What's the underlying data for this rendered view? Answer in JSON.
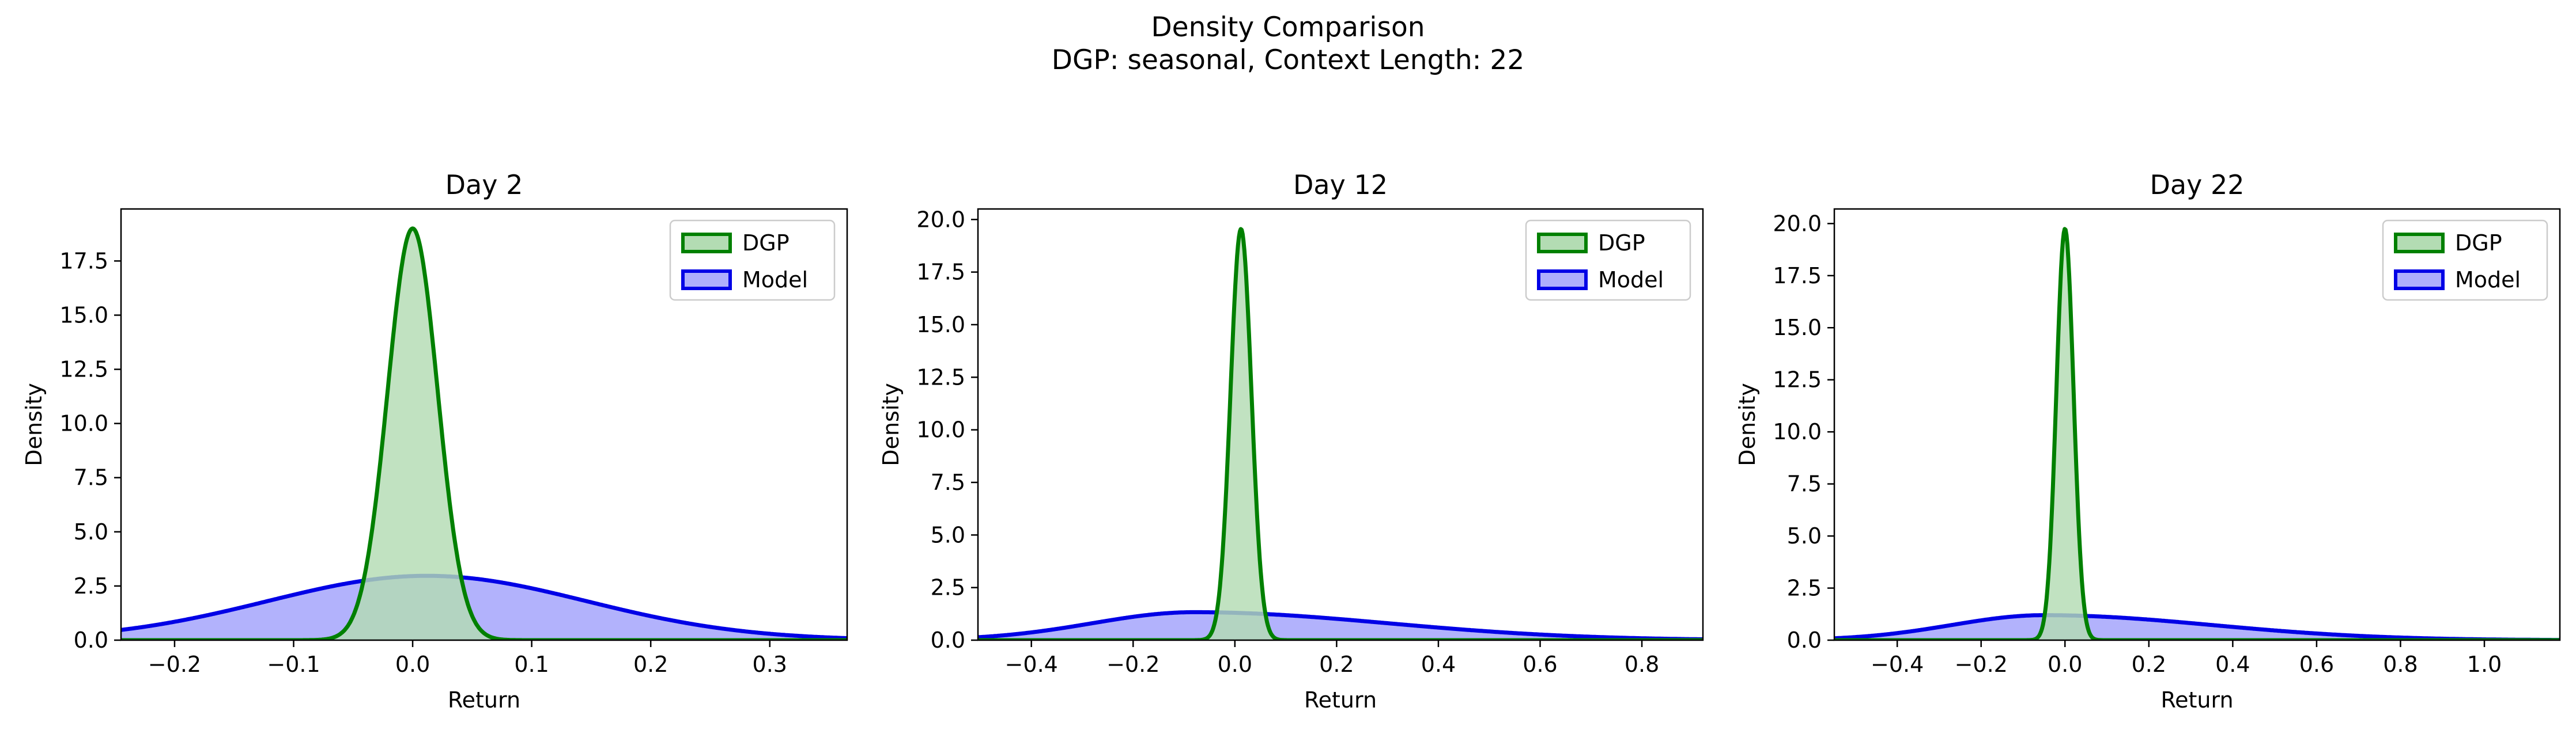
{
  "figure": {
    "title_line1": "Density Comparison",
    "title_line2": "DGP: seasonal, Context Length: 22"
  },
  "colors": {
    "dgp_line": "#008000",
    "dgp_fill": "#b3dcb3",
    "model_line": "#0000e6",
    "model_fill": "#aeaefc"
  },
  "chart_data": [
    {
      "type": "area",
      "title": "Day 2",
      "xlabel": "Return",
      "ylabel": "Density",
      "xlim": [
        -0.245,
        0.365
      ],
      "ylim": [
        0,
        19.9
      ],
      "xticks": [
        -0.2,
        -0.1,
        0.0,
        0.1,
        0.2,
        0.3
      ],
      "xtick_labels": [
        "−0.2",
        "−0.1",
        "0.0",
        "0.1",
        "0.2",
        "0.3"
      ],
      "yticks": [
        0,
        2.5,
        5,
        7.5,
        10,
        12.5,
        15,
        17.5
      ],
      "ytick_labels": [
        "0.0",
        "2.5",
        "5.0",
        "7.5",
        "10.0",
        "12.5",
        "15.0",
        "17.5"
      ],
      "legend": {
        "position": "top-right",
        "entries": [
          "DGP",
          "Model"
        ]
      },
      "series": [
        {
          "name": "DGP",
          "mean": 0.0,
          "sd": 0.021,
          "peak": 19.0
        },
        {
          "name": "Model",
          "mean": 0.012,
          "sd": 0.134,
          "peak": 2.97
        }
      ]
    },
    {
      "type": "area",
      "title": "Day 12",
      "xlabel": "Return",
      "ylabel": "Density",
      "xlim": [
        -0.505,
        0.92
      ],
      "ylim": [
        0,
        20.5
      ],
      "xticks": [
        -0.4,
        -0.2,
        0.0,
        0.2,
        0.4,
        0.6,
        0.8
      ],
      "xtick_labels": [
        "−0.4",
        "−0.2",
        "0.0",
        "0.2",
        "0.4",
        "0.6",
        "0.8"
      ],
      "yticks": [
        0,
        2.5,
        5,
        7.5,
        10,
        12.5,
        15,
        17.5,
        20
      ],
      "ytick_labels": [
        "0.0",
        "2.5",
        "5.0",
        "7.5",
        "10.0",
        "12.5",
        "15.0",
        "17.5",
        "20.0"
      ],
      "legend": {
        "position": "top-right",
        "entries": [
          "DGP",
          "Model"
        ]
      },
      "series": [
        {
          "name": "DGP",
          "mean": 0.012,
          "sd": 0.0205,
          "peak": 19.55
        },
        {
          "name": "Model",
          "mean": -0.08,
          "sdl": 0.2,
          "sdr": 0.38,
          "peak": 1.33
        }
      ]
    },
    {
      "type": "area",
      "title": "Day 22",
      "xlabel": "Return",
      "ylabel": "Density",
      "xlim": [
        -0.55,
        1.18
      ],
      "ylim": [
        0,
        20.7
      ],
      "xticks": [
        -0.4,
        -0.2,
        0.0,
        0.2,
        0.4,
        0.6,
        0.8,
        1.0
      ],
      "xtick_labels": [
        "−0.4",
        "−0.2",
        "0.0",
        "0.2",
        "0.4",
        "0.6",
        "0.8",
        "1.0"
      ],
      "yticks": [
        0,
        2.5,
        5,
        7.5,
        10,
        12.5,
        15,
        17.5,
        20
      ],
      "ytick_labels": [
        "0.0",
        "2.5",
        "5.0",
        "7.5",
        "10.0",
        "12.5",
        "15.0",
        "17.5",
        "20.0"
      ],
      "legend": {
        "position": "top-right",
        "entries": [
          "DGP",
          "Model"
        ]
      },
      "series": [
        {
          "name": "DGP",
          "mean": 0.0,
          "sd": 0.0205,
          "peak": 19.75
        },
        {
          "name": "Model",
          "mean": -0.05,
          "sdl": 0.22,
          "sdr": 0.4,
          "peak": 1.2
        }
      ]
    }
  ]
}
